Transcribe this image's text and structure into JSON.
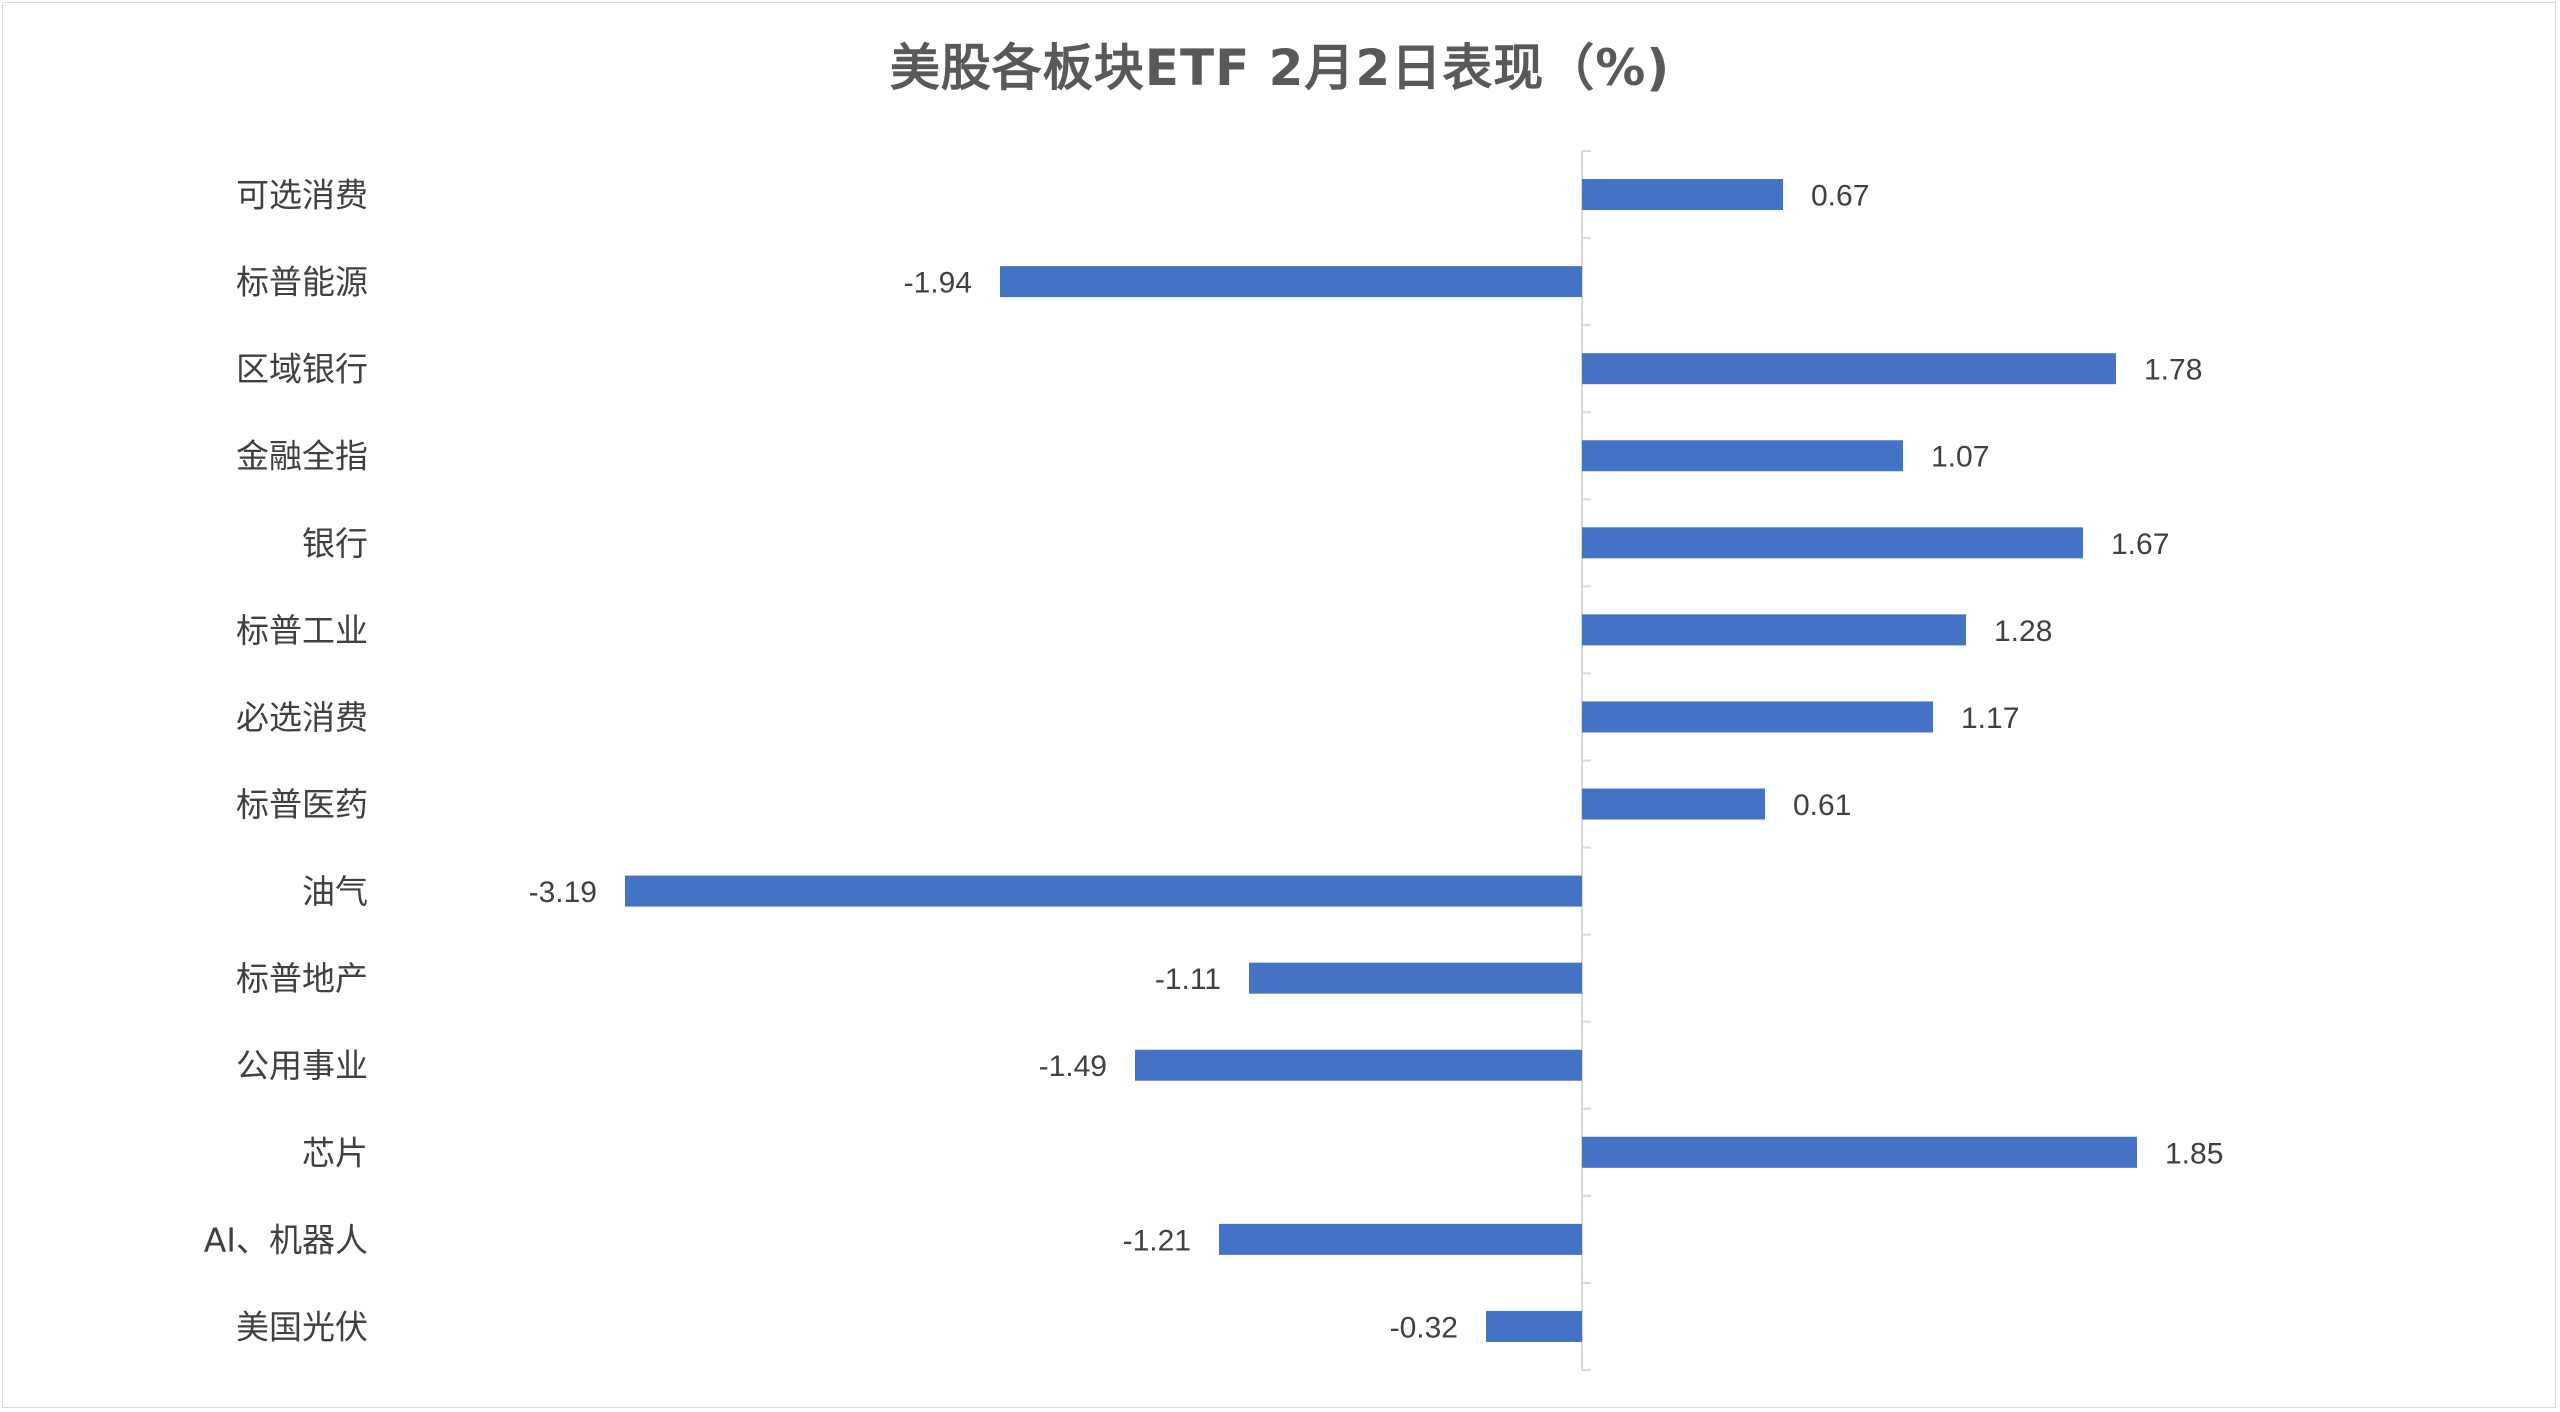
{
  "chart_data": {
    "type": "bar",
    "orientation": "horizontal",
    "title": "美股各板块ETF  2月2日表现（%)",
    "xlabel": "",
    "ylabel": "",
    "grid": false,
    "legend": "none",
    "xlim": [
      -3.6,
      2.0
    ],
    "categories": [
      "可选消费",
      "标普能源",
      "区域银行",
      "金融全指",
      "银行",
      "标普工业",
      "必选消费",
      "标普医药",
      "油气",
      "标普地产",
      "公用事业",
      "芯片",
      "AI、机器人",
      "美国光伏"
    ],
    "values": [
      0.67,
      -1.94,
      1.78,
      1.07,
      1.67,
      1.28,
      1.17,
      0.61,
      -3.19,
      -1.11,
      -1.49,
      1.85,
      -1.21,
      -0.32
    ],
    "value_labels": [
      "0.67",
      "-1.94",
      "1.78",
      "1.07",
      "1.67",
      "1.28",
      "1.17",
      "0.61",
      "-3.19",
      "-1.11",
      "-1.49",
      "1.85",
      "-1.21",
      "-0.32"
    ],
    "colors": {
      "bar": "#4472C4",
      "axis": "#d9d9d9",
      "text": "#404040",
      "title": "#595959"
    }
  }
}
